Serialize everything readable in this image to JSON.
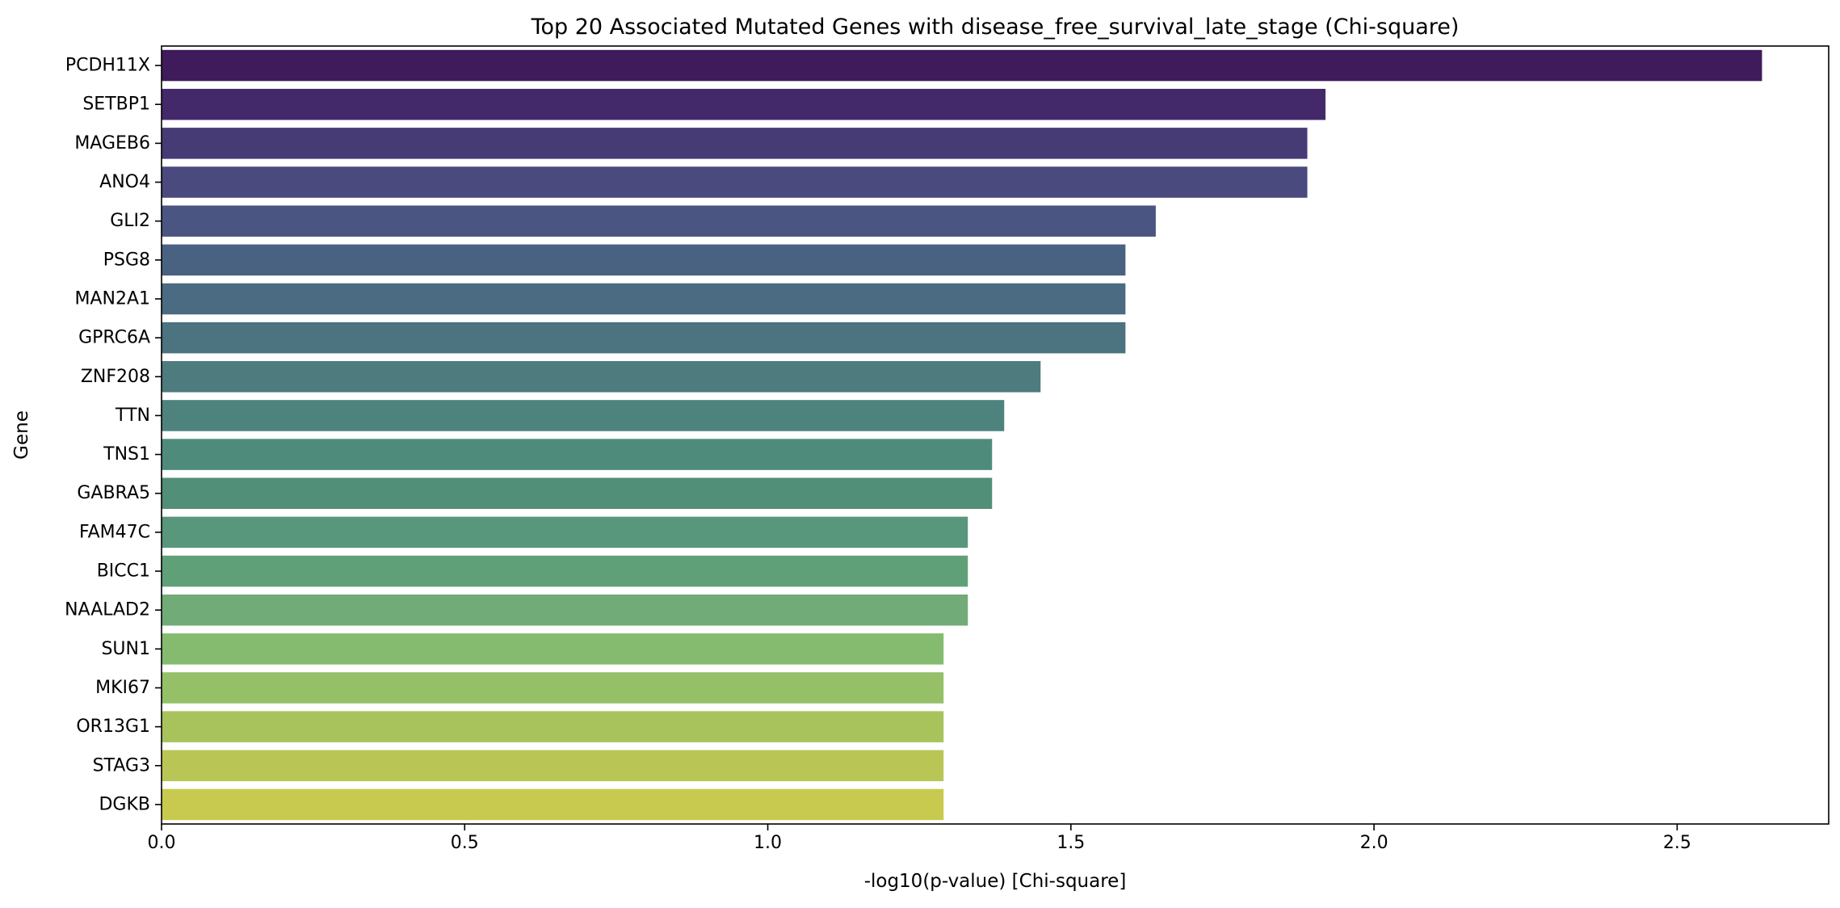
{
  "chart_data": {
    "type": "bar",
    "orientation": "horizontal",
    "title": "Top 20 Associated Mutated Genes with disease_free_survival_late_stage (Chi-square)",
    "xlabel": "-log10(p-value) [Chi-square]",
    "ylabel": "Gene",
    "xlim": [
      0,
      2.75
    ],
    "xticks": [
      0.0,
      0.5,
      1.0,
      1.5,
      2.0,
      2.5
    ],
    "xtick_labels": [
      "0.0",
      "0.5",
      "1.0",
      "1.5",
      "2.0",
      "2.5"
    ],
    "grid": false,
    "legend": "none",
    "palette": "viridis",
    "categories": [
      "PCDH11X",
      "SETBP1",
      "MAGEB6",
      "ANO4",
      "GLI2",
      "PSG8",
      "MAN2A1",
      "GPRC6A",
      "ZNF208",
      "TTN",
      "TNS1",
      "GABRA5",
      "FAM47C",
      "BICC1",
      "NAALAD2",
      "SUN1",
      "MKI67",
      "OR13G1",
      "STAG3",
      "DGKB"
    ],
    "values": [
      2.64,
      1.92,
      1.89,
      1.89,
      1.64,
      1.59,
      1.59,
      1.59,
      1.45,
      1.39,
      1.37,
      1.37,
      1.33,
      1.33,
      1.33,
      1.29,
      1.29,
      1.29,
      1.29,
      1.29
    ],
    "colors": [
      "#3f1b5c",
      "#44296a",
      "#473b76",
      "#4a4a7e",
      "#4a5681",
      "#4a6282",
      "#4a6b81",
      "#4b7380",
      "#4d7b7e",
      "#4e837d",
      "#4f8b7b",
      "#528f78",
      "#58977c",
      "#60a079",
      "#70ab78",
      "#84bb6f",
      "#95c068",
      "#a8c35c",
      "#b9c656",
      "#c7ca4e"
    ]
  }
}
